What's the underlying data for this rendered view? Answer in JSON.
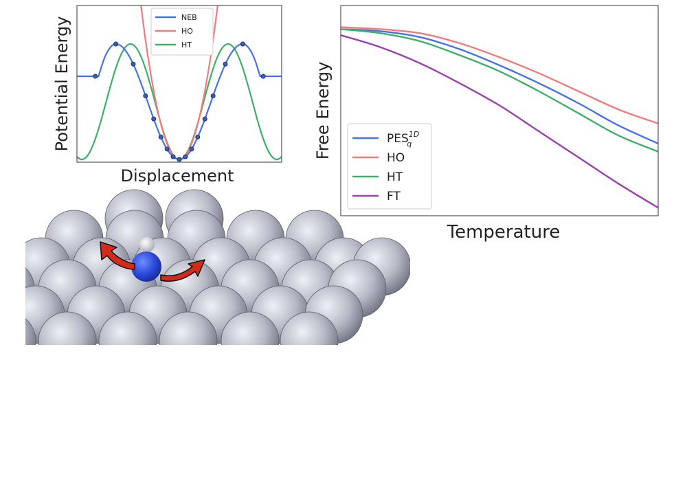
{
  "chart_data": [
    {
      "type": "line",
      "xlabel": "Displacement",
      "ylabel": "Potential Energy",
      "xlim": [
        -1,
        1
      ],
      "ylim": [
        0,
        1
      ],
      "grid": false,
      "legend_position": "top-center",
      "series": [
        {
          "name": "NEB",
          "color": "#4472e6",
          "function": "cos_well",
          "points": true
        },
        {
          "name": "HO",
          "color": "#ef7b7b",
          "function": "harmonic",
          "points": false
        },
        {
          "name": "HT",
          "color": "#3fae68",
          "function": "cos_well_full",
          "points": false
        }
      ],
      "neb_points_x": [
        -0.82,
        -0.62,
        -0.45,
        -0.33,
        -0.25,
        -0.18,
        -0.12,
        -0.06,
        0.0,
        0.06,
        0.12,
        0.18,
        0.25,
        0.33,
        0.45,
        0.62,
        0.82
      ]
    },
    {
      "type": "line",
      "xlabel": "Temperature",
      "ylabel": "Free Energy",
      "xlim": [
        0,
        1
      ],
      "ylim": [
        0,
        1
      ],
      "grid": false,
      "legend_position": "bottom-left",
      "series": [
        {
          "name": "PES",
          "name_sup": "1D",
          "name_sub": "q",
          "color": "#4472e6",
          "y": [
            0.93,
            0.92,
            0.89,
            0.83,
            0.75,
            0.66,
            0.56,
            0.45,
            0.36
          ]
        },
        {
          "name": "HO",
          "color": "#ef7b7b",
          "y": [
            0.94,
            0.93,
            0.91,
            0.86,
            0.79,
            0.71,
            0.62,
            0.53,
            0.46
          ]
        },
        {
          "name": "HT",
          "color": "#3fae68",
          "y": [
            0.93,
            0.91,
            0.87,
            0.8,
            0.72,
            0.62,
            0.51,
            0.4,
            0.32
          ]
        },
        {
          "name": "FT",
          "color": "#9b3fb0",
          "y": [
            0.9,
            0.84,
            0.76,
            0.66,
            0.55,
            0.42,
            0.29,
            0.16,
            0.04
          ]
        }
      ],
      "x": [
        0,
        0.125,
        0.25,
        0.375,
        0.5,
        0.625,
        0.75,
        0.875,
        1.0
      ]
    }
  ],
  "illustration": {
    "adsorbate_arrow_color": "#d42a1a",
    "atom_center_color": "#2f4fe0",
    "atom_top_color": "#f0f0f0",
    "surface_color": "#b9bcc7"
  }
}
